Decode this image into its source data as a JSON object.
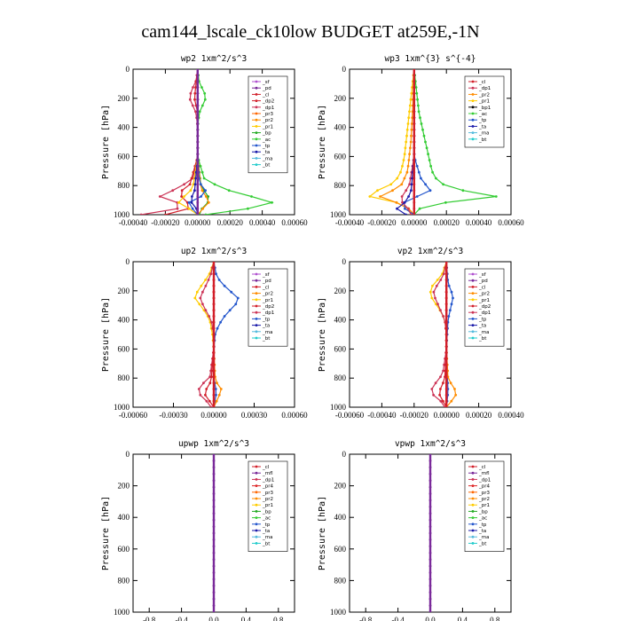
{
  "figure": {
    "title": "cam144_lscale_ck10low  BUDGET at259E,-1N"
  },
  "palette": {
    "sf": "#b050d0",
    "pd": "#7a2a9a",
    "cl": "#d21f2a",
    "mfl": "#7a2a9a",
    "dp2": "#d21f2a",
    "dp1": "#cc3355",
    "pr4": "#dd2222",
    "pr3": "#ff6600",
    "pr2": "#ff8c00",
    "pr1": "#ffcc00",
    "bp": "#22aa22",
    "ac": "#33cc33",
    "tp": "#2255cc",
    "ta": "#1a1aaa",
    "ma": "#55bbdd",
    "bt": "#22cccc"
  },
  "chart_data": [
    {
      "type": "line",
      "title": "wp2",
      "units": "1xm^2/s^3",
      "ylabel": "Pressure [hPa]",
      "ylim": [
        1000,
        0
      ],
      "yticks": [
        "0",
        "200",
        "400",
        "600",
        "800",
        "1000"
      ],
      "xlim": [
        -0.0004,
        0.0006
      ],
      "xticks": [
        "-0.00040",
        "-0.00020",
        "0.00000",
        "0.00020",
        "0.00040",
        "0.00060"
      ],
      "legend": [
        "sf",
        "pd",
        "cl",
        "dp2",
        "dp1",
        "pr3",
        "pr2",
        "pr1",
        "bp",
        "ac",
        "tp",
        "ta",
        "ma",
        "bt"
      ],
      "series": [
        {
          "name": "dp1",
          "p": [
            0,
            80,
            150,
            200,
            250,
            300,
            400,
            600,
            750,
            820,
            870,
            900,
            950,
            1000
          ],
          "v": [
            0,
            -1e-05,
            -4e-05,
            -5e-05,
            -3e-05,
            -1e-05,
            0,
            0,
            -3e-05,
            -0.00012,
            -0.00025,
            -0.00015,
            -8e-05,
            -0.00035
          ]
        },
        {
          "name": "dp2",
          "p": [
            0,
            100,
            200,
            300,
            600,
            800,
            850,
            900,
            950,
            1000
          ],
          "v": [
            0,
            -1e-05,
            -2e-05,
            0,
            0,
            -5e-05,
            -0.00012,
            -8e-05,
            -3e-05,
            -0.0002
          ]
        },
        {
          "name": "ac",
          "p": [
            0,
            100,
            150,
            200,
            250,
            300,
            400,
            600,
            750,
            820,
            880,
            930,
            960,
            1000
          ],
          "v": [
            0,
            1e-05,
            4e-05,
            5e-05,
            3e-05,
            1e-05,
            0,
            0,
            4e-05,
            0.00015,
            0.00035,
            0.0005,
            0.0003,
            5e-05
          ]
        },
        {
          "name": "bp",
          "p": [
            0,
            600,
            800,
            850,
            900,
            950,
            1000
          ],
          "v": [
            0,
            0,
            2e-05,
            5e-05,
            8e-05,
            3e-05,
            1e-05
          ]
        },
        {
          "name": "pr1",
          "p": [
            0,
            600,
            820,
            870,
            920,
            960,
            1000
          ],
          "v": [
            0,
            0,
            -3e-05,
            -8e-05,
            -0.00012,
            -5e-05,
            0
          ]
        },
        {
          "name": "pr2",
          "p": [
            0,
            600,
            820,
            870,
            920,
            960,
            1000
          ],
          "v": [
            0,
            0,
            2e-05,
            5e-05,
            7e-05,
            3e-05,
            0
          ]
        },
        {
          "name": "tp",
          "p": [
            0,
            600,
            780,
            830,
            870,
            920,
            960,
            1000
          ],
          "v": [
            0,
            0,
            1e-05,
            5e-05,
            3e-05,
            -6e-05,
            -3e-05,
            0
          ]
        },
        {
          "name": "ta",
          "p": [
            0,
            600,
            850,
            900,
            940,
            970,
            1000
          ],
          "v": [
            0,
            0,
            -2e-05,
            -5e-05,
            -2e-05,
            0,
            0
          ]
        },
        {
          "name": "pd",
          "p": [
            0,
            1000
          ],
          "v": [
            0,
            0
          ]
        }
      ]
    },
    {
      "type": "line",
      "title": "wp3",
      "units": "1xm^{3} s^{-4}",
      "ylabel": "Pressure [hPa]",
      "ylim": [
        1000,
        0
      ],
      "yticks": [
        "0",
        "200",
        "400",
        "600",
        "800",
        "1000"
      ],
      "xlim": [
        -0.0004,
        0.0006
      ],
      "xticks": [
        "-0.00040",
        "-0.00020",
        "0.00000",
        "0.00020",
        "0.00040",
        "0.00060"
      ],
      "legend": [
        "cl",
        "dp1",
        "pr2",
        "pr1",
        "bp1",
        "ac",
        "tp",
        "ta",
        "ma",
        "bt"
      ],
      "series": [
        {
          "name": "ac",
          "p": [
            0,
            100,
            200,
            300,
            400,
            500,
            600,
            700,
            780,
            830,
            870,
            900,
            940,
            1000
          ],
          "v": [
            0,
            1e-05,
            2e-05,
            3e-05,
            5e-05,
            7e-05,
            9e-05,
            0.00011,
            0.00015,
            0.00028,
            0.00055,
            0.0003,
            5e-05,
            0
          ]
        },
        {
          "name": "pr1",
          "p": [
            0,
            100,
            200,
            300,
            400,
            500,
            600,
            700,
            780,
            830,
            870,
            900,
            940,
            1000
          ],
          "v": [
            0,
            -1e-05,
            -2e-05,
            -3e-05,
            -4e-05,
            -5e-05,
            -6e-05,
            -8e-05,
            -0.00012,
            -0.00022,
            -0.0003,
            -0.00015,
            -5e-05,
            0
          ]
        },
        {
          "name": "pr2",
          "p": [
            0,
            300,
            500,
            700,
            800,
            850,
            880,
            920,
            960,
            1000
          ],
          "v": [
            0,
            -1e-05,
            -2e-05,
            -4e-05,
            -8e-05,
            -0.00016,
            -0.00022,
            -0.0001,
            -3e-05,
            0
          ]
        },
        {
          "name": "tp",
          "p": [
            0,
            600,
            780,
            820,
            860,
            900,
            940,
            980,
            1000
          ],
          "v": [
            0,
            0,
            5e-05,
            0.00012,
            6e-05,
            -5e-05,
            -8e-05,
            -3e-05,
            0
          ]
        },
        {
          "name": "dp1",
          "p": [
            0,
            600,
            800,
            850,
            900,
            950,
            1000
          ],
          "v": [
            0,
            0,
            -3e-05,
            -6e-05,
            -9e-05,
            -4e-05,
            -2e-05
          ]
        },
        {
          "name": "ta",
          "p": [
            0,
            600,
            850,
            920,
            970,
            1000
          ],
          "v": [
            0,
            0,
            -2e-05,
            -6e-05,
            -0.00012,
            -5e-05
          ]
        },
        {
          "name": "cl",
          "p": [
            0,
            1000
          ],
          "v": [
            0,
            0
          ]
        }
      ]
    },
    {
      "type": "line",
      "title": "up2",
      "units": "1xm^2/s^3",
      "ylabel": "Pressure [hPa]",
      "ylim": [
        1000,
        0
      ],
      "yticks": [
        "0",
        "200",
        "400",
        "600",
        "800",
        "1000"
      ],
      "xlim": [
        -0.0006,
        0.0006
      ],
      "xticks": [
        "-0.00060",
        "-0.00030",
        "0.00000",
        "0.00030",
        "0.00060"
      ],
      "legend": [
        "sf",
        "pd",
        "cl",
        "pr2",
        "pr1",
        "dp2",
        "dp1",
        "tp",
        "ta",
        "ma",
        "bt"
      ],
      "series": [
        {
          "name": "pr1",
          "p": [
            0,
            80,
            150,
            200,
            250,
            300,
            350,
            400,
            500,
            600,
            700,
            800,
            1000
          ],
          "v": [
            0,
            -3e-05,
            -8e-05,
            -0.00012,
            -0.00014,
            -0.0001,
            -6e-05,
            -3e-05,
            -1e-05,
            0,
            0,
            0,
            0
          ]
        },
        {
          "name": "dp1",
          "p": [
            0,
            80,
            150,
            200,
            250,
            300,
            350,
            400,
            500,
            600,
            800,
            850,
            900,
            950,
            1000
          ],
          "v": [
            0,
            -2e-05,
            -5e-05,
            -8e-05,
            -0.0001,
            -8e-05,
            -5e-05,
            -2e-05,
            0,
            0,
            -3e-05,
            -0.0001,
            -0.00012,
            -6e-05,
            -2e-05
          ]
        },
        {
          "name": "tp",
          "p": [
            0,
            100,
            150,
            200,
            250,
            300,
            350,
            400,
            450,
            500,
            600,
            800,
            900,
            1000
          ],
          "v": [
            0,
            2e-05,
            6e-05,
            0.00012,
            0.00018,
            0.00016,
            0.0001,
            6e-05,
            3e-05,
            1e-05,
            0,
            0,
            2e-05,
            0
          ]
        },
        {
          "name": "pr2",
          "p": [
            0,
            600,
            800,
            850,
            880,
            920,
            960,
            1000
          ],
          "v": [
            0,
            0,
            1e-05,
            3e-05,
            6e-05,
            4e-05,
            2e-05,
            0
          ]
        },
        {
          "name": "dp2",
          "p": [
            0,
            600,
            820,
            870,
            900,
            940,
            980,
            1000
          ],
          "v": [
            0,
            0,
            -2e-05,
            -5e-05,
            -8e-05,
            -4e-05,
            -2e-05,
            0
          ]
        },
        {
          "name": "cl",
          "p": [
            0,
            1000
          ],
          "v": [
            0,
            0
          ]
        }
      ]
    },
    {
      "type": "line",
      "title": "vp2",
      "units": "1xm^2/s^3",
      "ylabel": "Pressure [hPa]",
      "ylim": [
        1000,
        0
      ],
      "yticks": [
        "0",
        "200",
        "400",
        "600",
        "800",
        "1000"
      ],
      "xlim": [
        -0.0006,
        0.0004
      ],
      "xticks": [
        "-0.00060",
        "-0.00040",
        "-0.00020",
        "0.00000",
        "0.00020",
        "0.00040"
      ],
      "legend": [
        "sf",
        "pd",
        "cl",
        "pr2",
        "pr1",
        "dp2",
        "dp1",
        "tp",
        "ta",
        "ma",
        "bt"
      ],
      "series": [
        {
          "name": "pr1",
          "p": [
            0,
            100,
            150,
            200,
            250,
            300,
            350,
            400,
            500,
            600,
            800,
            1000
          ],
          "v": [
            0,
            -3e-05,
            -8e-05,
            -0.0001,
            -9e-05,
            -6e-05,
            -3e-05,
            -1e-05,
            0,
            0,
            0,
            0
          ]
        },
        {
          "name": "dp1",
          "p": [
            0,
            100,
            150,
            200,
            250,
            300,
            350,
            400,
            500,
            600,
            750,
            800,
            850,
            900,
            950,
            1000
          ],
          "v": [
            0,
            -2e-05,
            -5e-05,
            -8e-05,
            -7e-05,
            -5e-05,
            -3e-05,
            -1e-05,
            0,
            0,
            -2e-05,
            -4e-05,
            -8e-05,
            -0.0001,
            -4e-05,
            -1e-05
          ]
        },
        {
          "name": "tp",
          "p": [
            0,
            150,
            200,
            250,
            300,
            350,
            400,
            600,
            900,
            1000
          ],
          "v": [
            0,
            1e-05,
            3e-05,
            4e-05,
            3e-05,
            2e-05,
            1e-05,
            0,
            1e-05,
            0
          ]
        },
        {
          "name": "pr2",
          "p": [
            0,
            600,
            800,
            860,
            900,
            940,
            980,
            1000
          ],
          "v": [
            0,
            0,
            1e-05,
            4e-05,
            7e-05,
            4e-05,
            2e-05,
            0
          ]
        },
        {
          "name": "dp2",
          "p": [
            0,
            600,
            800,
            860,
            900,
            940,
            980,
            1000
          ],
          "v": [
            0,
            0,
            -1e-05,
            -3e-05,
            -5e-05,
            -3e-05,
            -1e-05,
            0
          ]
        },
        {
          "name": "cl",
          "p": [
            0,
            1000
          ],
          "v": [
            0,
            0
          ]
        }
      ]
    },
    {
      "type": "line",
      "title": "upwp",
      "units": "1xm^2/s^3",
      "ylabel": "Pressure [hPa]",
      "ylim": [
        1000,
        0
      ],
      "yticks": [
        "0",
        "200",
        "400",
        "600",
        "800",
        "1000"
      ],
      "xlim": [
        -1.0,
        1.0
      ],
      "xticks": [
        "-0.8",
        "-0.4",
        "0.0",
        "0.4",
        "0.8"
      ],
      "legend": [
        "cl",
        "mfl",
        "dp1",
        "pr4",
        "pr3",
        "pr2",
        "pr1",
        "bp",
        "ac",
        "tp",
        "ta",
        "ma",
        "bt"
      ],
      "series": [
        {
          "name": "mfl",
          "p": [
            0,
            1000
          ],
          "v": [
            0,
            0
          ]
        }
      ]
    },
    {
      "type": "line",
      "title": "vpwp",
      "units": "1xm^2/s^3",
      "ylabel": "Pressure [hPa]",
      "ylim": [
        1000,
        0
      ],
      "yticks": [
        "0",
        "200",
        "400",
        "600",
        "800",
        "1000"
      ],
      "xlim": [
        -1.0,
        1.0
      ],
      "xticks": [
        "-0.8",
        "-0.4",
        "0.0",
        "0.4",
        "0.8"
      ],
      "legend": [
        "cl",
        "mfl",
        "dp1",
        "pr4",
        "pr3",
        "pr2",
        "pr1",
        "bp",
        "ac",
        "tp",
        "ta",
        "ma",
        "bt"
      ],
      "series": [
        {
          "name": "mfl",
          "p": [
            0,
            1000
          ],
          "v": [
            0,
            0
          ]
        }
      ]
    }
  ]
}
